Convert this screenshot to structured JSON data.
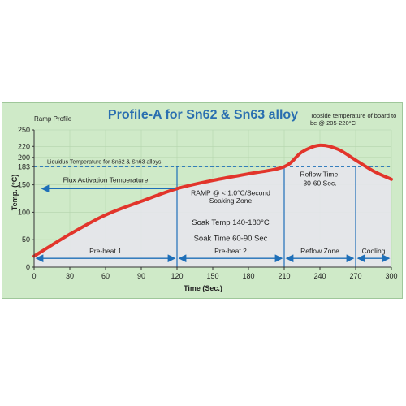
{
  "chart_data": {
    "type": "line",
    "title": "Profile-A for Sn62 & Sn63 alloy",
    "subtitle_left": "Ramp Profile",
    "note_top_right": "Topside temperature of board to be @ 205-220°C",
    "xlabel": "Time (Sec.)",
    "ylabel": "Temp. (°C)",
    "xlim": [
      0,
      300
    ],
    "ylim": [
      0,
      250
    ],
    "xticks": [
      0,
      30,
      60,
      90,
      120,
      150,
      180,
      210,
      240,
      270,
      300
    ],
    "yticks": [
      0,
      50,
      100,
      150,
      183,
      200,
      220,
      250
    ],
    "grid": true,
    "series": [
      {
        "x": [
          0,
          30,
          60,
          90,
          120,
          150,
          180,
          210,
          225,
          240,
          255,
          270,
          285,
          300
        ],
        "y": [
          20,
          60,
          95,
          120,
          143,
          158,
          170,
          183,
          210,
          222,
          215,
          195,
          175,
          160
        ]
      }
    ],
    "liquidus": {
      "y": 183,
      "label": "Liquidus Temperature for Sn62 & Sn63 alloys"
    },
    "zones": [
      {
        "from": 0,
        "to": 120,
        "label": "Pre-heat 1"
      },
      {
        "from": 120,
        "to": 210,
        "label": "Pre-heat 2"
      },
      {
        "from": 210,
        "to": 270,
        "label": "Reflow Zone"
      },
      {
        "from": 270,
        "to": 300,
        "label": "Cooling"
      }
    ],
    "annotations": {
      "flux": "Flux Activation Temperature",
      "ramp_line1": "RAMP @ < 1.0°C/Second",
      "ramp_line2": "Soaking Zone",
      "soak_temp": "Soak Temp 140-180°C",
      "soak_time": "Soak Time 60-90 Sec",
      "reflow_line1": "Reflow Time:",
      "reflow_line2": "30-60 Sec."
    },
    "colors": {
      "curve": "#e2352b",
      "background": "#cfeac8",
      "fill": "#e6e6ec",
      "dashed": "#1e6fb8",
      "arrow": "#1e6fb8",
      "title": "#2a6fb0"
    }
  }
}
